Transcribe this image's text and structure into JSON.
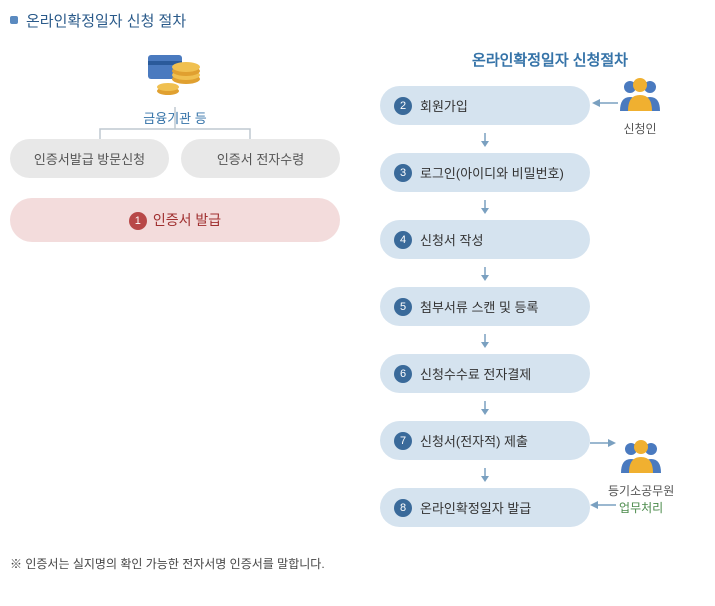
{
  "title": "온라인확정일자 신청 절차",
  "left": {
    "icon_label": "금융기관 등",
    "gray_boxes": [
      "인증서발급 방문신청",
      "인증서 전자수령"
    ],
    "red_box": {
      "num": "1",
      "label": "인증서 발급"
    }
  },
  "right": {
    "title": "온라인확정일자 신청절차",
    "steps": [
      {
        "num": "2",
        "label": "회원가입"
      },
      {
        "num": "3",
        "label": "로그인(아이디와 비밀번호)"
      },
      {
        "num": "4",
        "label": "신청서 작성"
      },
      {
        "num": "5",
        "label": "첨부서류 스캔 및 등록"
      },
      {
        "num": "6",
        "label": "신청수수료 전자결제"
      },
      {
        "num": "7",
        "label": "신청서(전자적) 제출"
      },
      {
        "num": "8",
        "label": "온라인확정일자 발급"
      }
    ],
    "actor1": "신청인",
    "actor2": "등기소공무원",
    "actor2_sub": "업무처리"
  },
  "footnote": "※ 인증서는 실지명의 확인 가능한 전자서명 인증서를 말합니다.",
  "colors": {
    "badge_red": "#b84848",
    "badge_blue": "#3a6a9a",
    "box_blue": "#d5e3ef",
    "box_gray": "#e8e8e8",
    "box_red": "#f3dcdc",
    "arrow": "#7aa0c0",
    "line": "#bfc8d0"
  }
}
